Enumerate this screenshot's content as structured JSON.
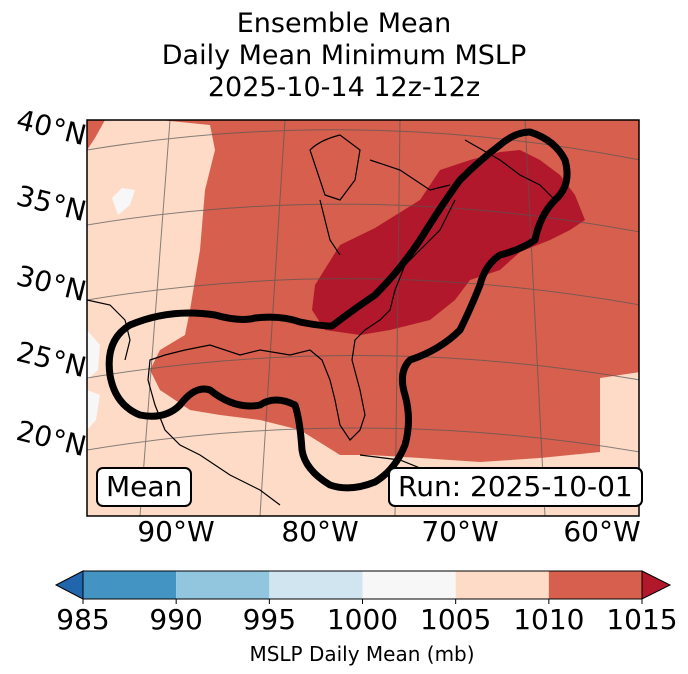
{
  "title": {
    "line1": "Ensemble Mean",
    "line2": "Daily Mean Minimum MSLP",
    "line3": "2025-10-14 12z-12z"
  },
  "map": {
    "lat_labels": [
      "40°N",
      "35°N",
      "30°N",
      "25°N",
      "20°N"
    ],
    "lon_labels": [
      "90°W",
      "80°W",
      "70°W",
      "60°W"
    ],
    "colors": {
      "ocean_light": "#fddbc7",
      "mid": "#d6604d",
      "dark": "#b2182b",
      "white_patch": "#f7f7f7",
      "contour": "#000000"
    }
  },
  "annotations": {
    "left_box": "Mean",
    "right_box": "Run: 2025-10-01"
  },
  "colorbar": {
    "label": "MSLP Daily Mean (mb)",
    "ticks": [
      "985",
      "990",
      "995",
      "1000",
      "1005",
      "1010",
      "1015"
    ],
    "colors": [
      "#4393c3",
      "#92c5de",
      "#d1e5f0",
      "#f7f7f7",
      "#fddbc7",
      "#d6604d"
    ],
    "extend_low_color": "#2166ac",
    "extend_high_color": "#b2182b"
  }
}
